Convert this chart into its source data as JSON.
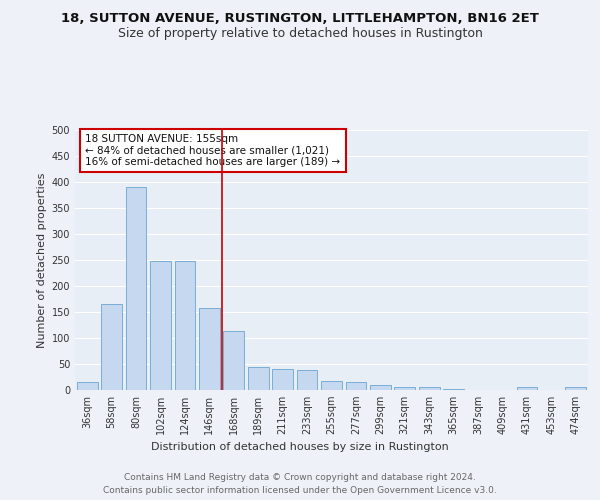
{
  "title1": "18, SUTTON AVENUE, RUSTINGTON, LITTLEHAMPTON, BN16 2ET",
  "title2": "Size of property relative to detached houses in Rustington",
  "xlabel": "Distribution of detached houses by size in Rustington",
  "ylabel": "Number of detached properties",
  "categories": [
    "36sqm",
    "58sqm",
    "80sqm",
    "102sqm",
    "124sqm",
    "146sqm",
    "168sqm",
    "189sqm",
    "211sqm",
    "233sqm",
    "255sqm",
    "277sqm",
    "299sqm",
    "321sqm",
    "343sqm",
    "365sqm",
    "387sqm",
    "409sqm",
    "431sqm",
    "453sqm",
    "474sqm"
  ],
  "values": [
    15,
    165,
    390,
    248,
    248,
    158,
    113,
    44,
    40,
    38,
    18,
    15,
    10,
    6,
    5,
    2,
    0,
    0,
    5,
    0,
    5
  ],
  "bar_color": "#c5d8f0",
  "bar_edge_color": "#7aaed6",
  "property_label": "18 SUTTON AVENUE: 155sqm",
  "annotation_line1": "← 84% of detached houses are smaller (1,021)",
  "annotation_line2": "16% of semi-detached houses are larger (189) →",
  "vline_x_index": 6,
  "vline_color": "#cc0000",
  "ylim": [
    0,
    500
  ],
  "yticks": [
    0,
    50,
    100,
    150,
    200,
    250,
    300,
    350,
    400,
    450,
    500
  ],
  "footer1": "Contains HM Land Registry data © Crown copyright and database right 2024.",
  "footer2": "Contains public sector information licensed under the Open Government Licence v3.0.",
  "bg_color": "#eef2f8",
  "plot_bg": "#e8eef6",
  "annotation_box_color": "#cc0000",
  "grid_color": "#ffffff",
  "title1_fontsize": 9.5,
  "title2_fontsize": 9,
  "axis_label_fontsize": 8,
  "tick_fontsize": 7,
  "footer_fontsize": 6.5,
  "annotation_fontsize": 7.5
}
